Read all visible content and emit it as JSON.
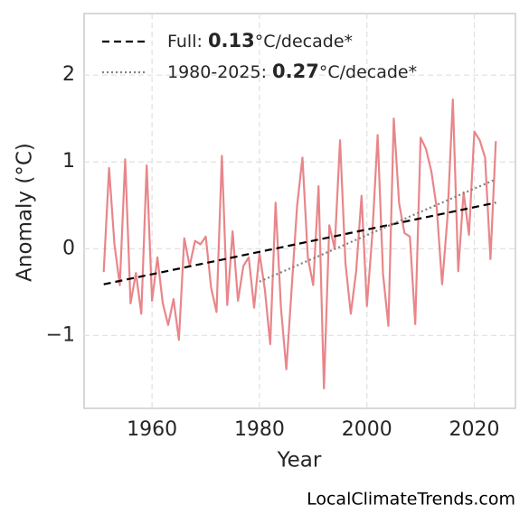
{
  "chart_data": {
    "type": "line",
    "xlabel": "Year",
    "ylabel": "Anomaly (°C)",
    "watermark": "LocalClimateTrends.com",
    "xlim": [
      1947.35,
      2027.65
    ],
    "ylim": [
      -1.84,
      2.71
    ],
    "xticks": [
      1960,
      1980,
      2000,
      2020
    ],
    "yticks": [
      {
        "value": -1,
        "label": "−1"
      },
      0,
      1,
      2
    ],
    "grid": true,
    "legend": "upper left",
    "series": [
      {
        "color": "#e8868a",
        "x": [
          1951,
          1952,
          1953,
          1954,
          1955,
          1956,
          1957,
          1958,
          1959,
          1960,
          1961,
          1962,
          1963,
          1964,
          1965,
          1966,
          1967,
          1968,
          1969,
          1970,
          1971,
          1972,
          1973,
          1974,
          1975,
          1976,
          1977,
          1978,
          1979,
          1980,
          1981,
          1982,
          1983,
          1984,
          1985,
          1986,
          1987,
          1988,
          1989,
          1990,
          1991,
          1992,
          1993,
          1994,
          1995,
          1996,
          1997,
          1998,
          1999,
          2000,
          2001,
          2002,
          2003,
          2004,
          2005,
          2006,
          2007,
          2008,
          2009,
          2010,
          2011,
          2012,
          2013,
          2014,
          2015,
          2016,
          2017,
          2018,
          2019,
          2020,
          2021,
          2022,
          2023,
          2024
        ],
        "values": [
          -0.27,
          0.93,
          0.05,
          -0.42,
          1.03,
          -0.63,
          -0.28,
          -0.75,
          0.96,
          -0.6,
          -0.1,
          -0.63,
          -0.88,
          -0.58,
          -1.05,
          0.12,
          -0.2,
          0.09,
          0.05,
          0.14,
          -0.45,
          -0.73,
          1.07,
          -0.65,
          0.2,
          -0.6,
          -0.2,
          -0.1,
          -0.68,
          -0.05,
          -0.47,
          -1.1,
          0.53,
          -0.68,
          -1.39,
          -0.45,
          0.49,
          1.05,
          -0.1,
          -0.42,
          0.72,
          -1.61,
          0.27,
          0.0,
          1.25,
          -0.16,
          -0.75,
          -0.26,
          0.61,
          -0.66,
          0.16,
          1.31,
          -0.29,
          -0.89,
          1.5,
          0.52,
          0.18,
          0.14,
          -0.87,
          1.28,
          1.15,
          0.89,
          0.47,
          -0.41,
          0.36,
          1.72,
          -0.26,
          0.65,
          0.16,
          1.35,
          1.25,
          1.05,
          -0.12,
          1.24
        ]
      },
      {
        "color": "#000000",
        "dash": "dashed",
        "label_parts": [
          "Full: ",
          "0.13",
          "°C/decade*"
        ],
        "x": [
          1951,
          2024
        ],
        "values": [
          -0.41,
          0.53
        ]
      },
      {
        "color": "#808080",
        "dash": "dotted",
        "label_parts": [
          "1980-2025: ",
          "0.27",
          "°C/decade*"
        ],
        "x": [
          1980,
          2024
        ],
        "values": [
          -0.38,
          0.8
        ]
      }
    ]
  }
}
